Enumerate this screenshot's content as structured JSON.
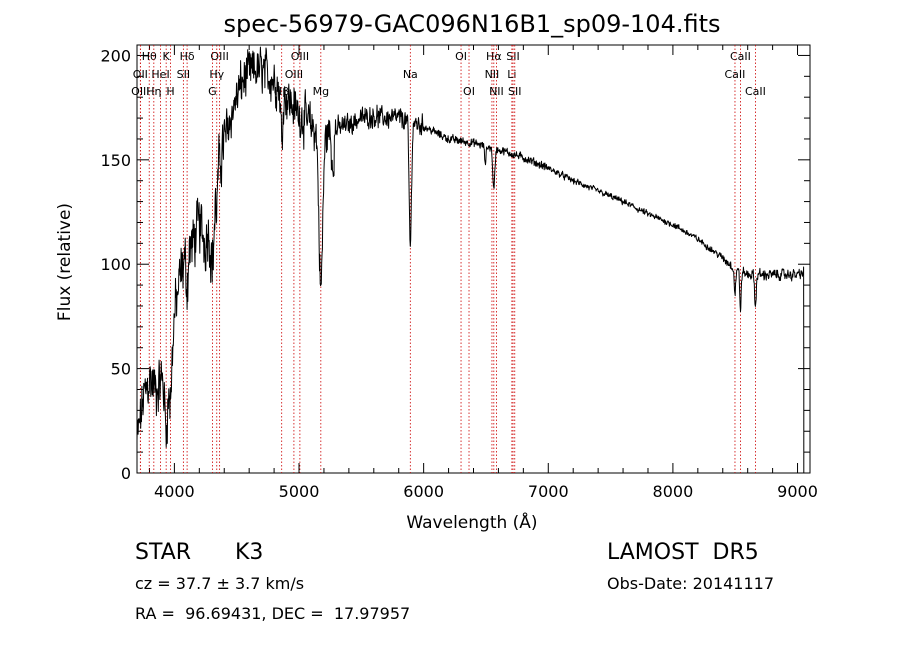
{
  "chart_data": {
    "type": "line",
    "title": "spec-56979-GAC096N16B1_sp09-104.fits",
    "xlabel": "Wavelength (Å)",
    "ylabel": "Flux (relative)",
    "xlim": [
      3700,
      9100
    ],
    "ylim": [
      0,
      205
    ],
    "x_ticks": [
      4000,
      5000,
      6000,
      7000,
      8000,
      9000
    ],
    "y_ticks": [
      0,
      50,
      100,
      150,
      200
    ],
    "grid": false,
    "line_color": "#000000",
    "marker_color": "#cc0000",
    "lines": [
      {
        "label": "Hθ",
        "wave": 3798,
        "row": 1
      },
      {
        "label": "OII",
        "wave": 3727,
        "row": 2
      },
      {
        "label": "OIII",
        "wave": 3727,
        "row": 3
      },
      {
        "label": "K",
        "wave": 3934,
        "row": 1
      },
      {
        "label": "HeI",
        "wave": 3889,
        "row": 2
      },
      {
        "label": "Hη",
        "wave": 3835,
        "row": 3
      },
      {
        "label": "H",
        "wave": 3969,
        "row": 3
      },
      {
        "label": "Hδ",
        "wave": 4102,
        "row": 1
      },
      {
        "label": "SII",
        "wave": 4072,
        "row": 2
      },
      {
        "label": "OIII",
        "wave": 4363,
        "row": 1
      },
      {
        "label": "Hγ",
        "wave": 4340,
        "row": 2
      },
      {
        "label": "G",
        "wave": 4305,
        "row": 3
      },
      {
        "label": "OIII",
        "wave": 5007,
        "row": 1
      },
      {
        "label": "OIII",
        "wave": 4959,
        "row": 2
      },
      {
        "label": "Hβ",
        "wave": 4861,
        "row": 3
      },
      {
        "label": "Mg",
        "wave": 5175,
        "row": 3
      },
      {
        "label": "Na",
        "wave": 5893,
        "row": 2
      },
      {
        "label": "OI",
        "wave": 6300,
        "row": 1
      },
      {
        "label": "OI",
        "wave": 6364,
        "row": 3
      },
      {
        "label": "Hα",
        "wave": 6563,
        "row": 1
      },
      {
        "label": "NII",
        "wave": 6548,
        "row": 2
      },
      {
        "label": "NII",
        "wave": 6584,
        "row": 3
      },
      {
        "label": "SII",
        "wave": 6717,
        "row": 1
      },
      {
        "label": "Li",
        "wave": 6708,
        "row": 2
      },
      {
        "label": "SII",
        "wave": 6731,
        "row": 3
      },
      {
        "label": "CaII",
        "wave": 8542,
        "row": 1
      },
      {
        "label": "CaII",
        "wave": 8498,
        "row": 2
      },
      {
        "label": "CaII",
        "wave": 8662,
        "row": 3
      }
    ],
    "continuum": [
      [
        3700,
        15
      ],
      [
        3750,
        35
      ],
      [
        3800,
        45
      ],
      [
        3850,
        40
      ],
      [
        3900,
        45
      ],
      [
        3950,
        50
      ],
      [
        4000,
        75
      ],
      [
        4050,
        95
      ],
      [
        4100,
        105
      ],
      [
        4150,
        110
      ],
      [
        4200,
        120
      ],
      [
        4250,
        110
      ],
      [
        4300,
        130
      ],
      [
        4350,
        145
      ],
      [
        4400,
        160
      ],
      [
        4450,
        170
      ],
      [
        4500,
        180
      ],
      [
        4550,
        188
      ],
      [
        4600,
        192
      ],
      [
        4700,
        193
      ],
      [
        4800,
        188
      ],
      [
        4900,
        180
      ],
      [
        5000,
        172
      ],
      [
        5100,
        166
      ],
      [
        5200,
        162
      ],
      [
        5300,
        165
      ],
      [
        5400,
        167
      ],
      [
        5500,
        170
      ],
      [
        5600,
        171
      ],
      [
        5700,
        170
      ],
      [
        5800,
        170
      ],
      [
        5900,
        168
      ],
      [
        6000,
        166
      ],
      [
        6100,
        163
      ],
      [
        6200,
        160
      ],
      [
        6400,
        158
      ],
      [
        6600,
        155
      ],
      [
        6800,
        151
      ],
      [
        7000,
        146
      ],
      [
        7200,
        140
      ],
      [
        7400,
        135
      ],
      [
        7600,
        130
      ],
      [
        7800,
        124
      ],
      [
        8000,
        119
      ],
      [
        8200,
        112
      ],
      [
        8400,
        103
      ],
      [
        8500,
        98
      ],
      [
        8600,
        95
      ],
      [
        8800,
        95
      ],
      [
        9000,
        95
      ],
      [
        9050,
        96
      ]
    ],
    "absorption": [
      {
        "center": 3934,
        "depth": 25,
        "width": 12
      },
      {
        "center": 3969,
        "depth": 22,
        "width": 12
      },
      {
        "center": 4102,
        "depth": 15,
        "width": 8
      },
      {
        "center": 4305,
        "depth": 30,
        "width": 15
      },
      {
        "center": 4340,
        "depth": 12,
        "width": 8
      },
      {
        "center": 4861,
        "depth": 22,
        "width": 8
      },
      {
        "center": 5175,
        "depth": 75,
        "width": 15
      },
      {
        "center": 5270,
        "depth": 15,
        "width": 10
      },
      {
        "center": 5893,
        "depth": 60,
        "width": 9
      },
      {
        "center": 6563,
        "depth": 20,
        "width": 8
      },
      {
        "center": 6495,
        "depth": 8,
        "width": 6
      },
      {
        "center": 8498,
        "depth": 12,
        "width": 6
      },
      {
        "center": 8542,
        "depth": 18,
        "width": 6
      },
      {
        "center": 8662,
        "depth": 16,
        "width": 6
      }
    ],
    "noise_segments": [
      {
        "from": 3700,
        "to": 4000,
        "amp": 26
      },
      {
        "from": 4000,
        "to": 4400,
        "amp": 28
      },
      {
        "from": 4400,
        "to": 5300,
        "amp": 22
      },
      {
        "from": 5300,
        "to": 6000,
        "amp": 10
      },
      {
        "from": 6000,
        "to": 7000,
        "amp": 4
      },
      {
        "from": 7000,
        "to": 8400,
        "amp": 3
      },
      {
        "from": 8400,
        "to": 9050,
        "amp": 5
      }
    ]
  },
  "info": {
    "object_class": "STAR",
    "subclass": "K3",
    "redshift": "cz = 37.7 ± 3.7 km/s",
    "coords": "RA =  96.69431, DEC =  17.97957",
    "survey": "LAMOST  DR5",
    "obs_date": "Obs-Date: 20141117"
  }
}
